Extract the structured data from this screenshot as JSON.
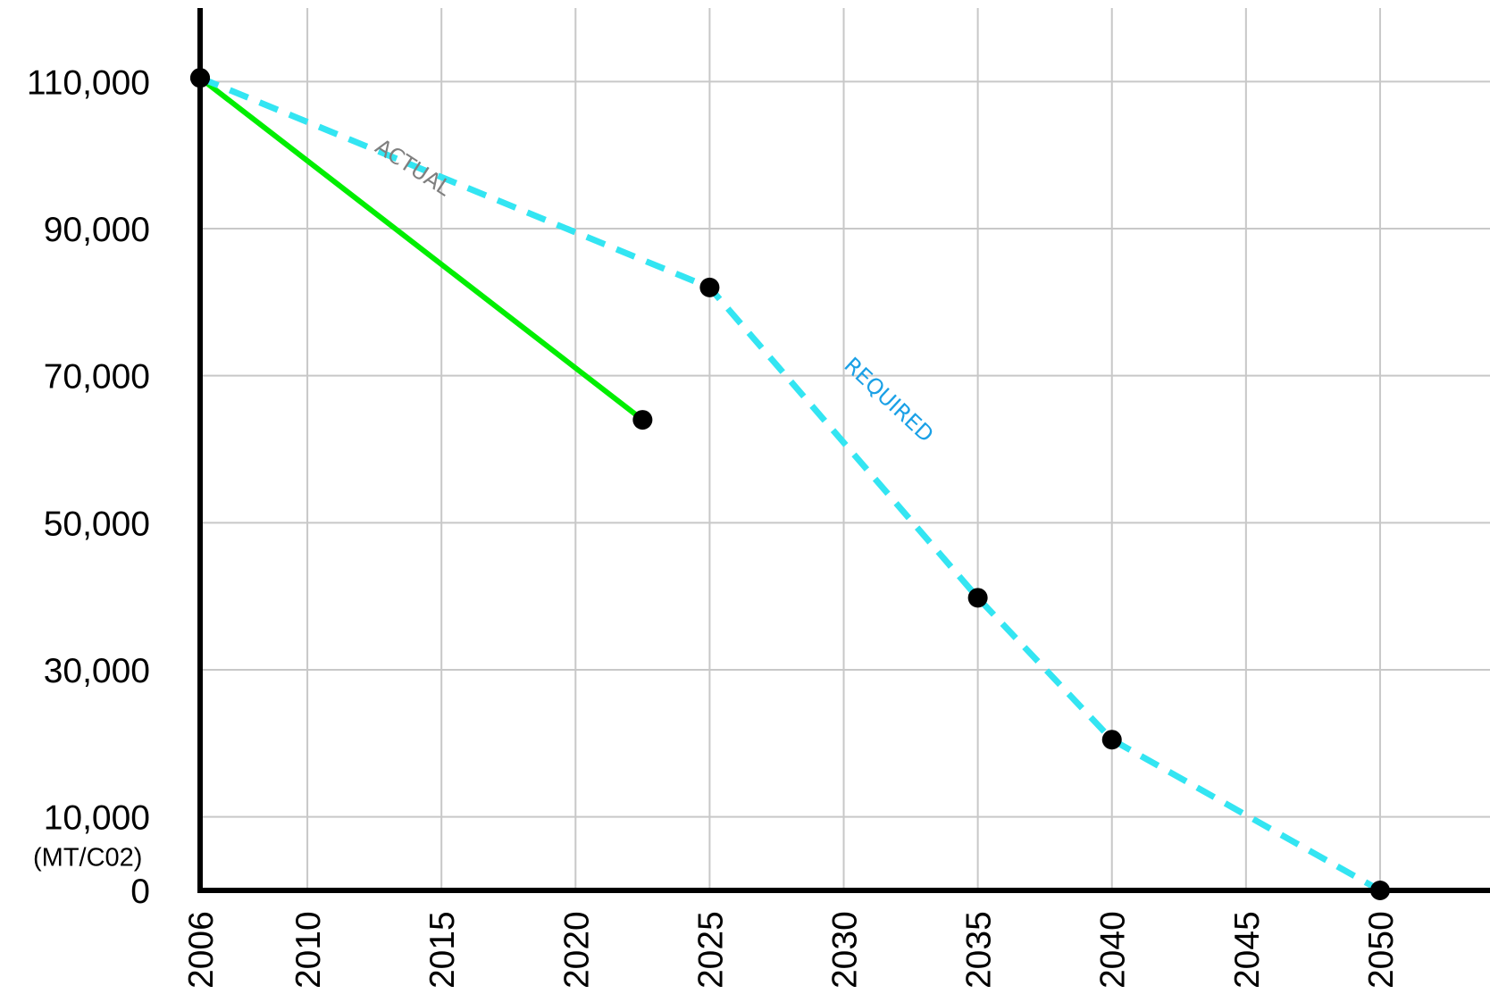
{
  "chart_data": {
    "type": "line",
    "title": "",
    "xlabel": "",
    "ylabel": "(MT/C02)",
    "x_ticks": [
      "2006",
      "2010",
      "2015",
      "2020",
      "2025",
      "2030",
      "2035",
      "2040",
      "2045",
      "2050"
    ],
    "y_ticks": [
      "0",
      "10,000",
      "30,000",
      "50,000",
      "70,000",
      "90,000",
      "110,000"
    ],
    "xlim": [
      2006,
      2052
    ],
    "ylim": [
      0,
      120000
    ],
    "grid": true,
    "series": [
      {
        "name": "ACTUAL",
        "color": "#00ee00",
        "style": "solid",
        "points": [
          {
            "x": 2006,
            "y": 110500
          },
          {
            "x": 2022.5,
            "y": 64000
          }
        ]
      },
      {
        "name": "REQUIRED",
        "color": "#33e5f2",
        "style": "dashed",
        "points": [
          {
            "x": 2006,
            "y": 110500
          },
          {
            "x": 2025,
            "y": 82000
          },
          {
            "x": 2035,
            "y": 39800
          },
          {
            "x": 2040,
            "y": 20500
          },
          {
            "x": 2050,
            "y": 0
          }
        ]
      }
    ],
    "annotations": [
      {
        "text": "ACTUAL",
        "color": "#7f7f7f"
      },
      {
        "text": "REQUIRED",
        "color": "#1aa0e6"
      }
    ]
  }
}
